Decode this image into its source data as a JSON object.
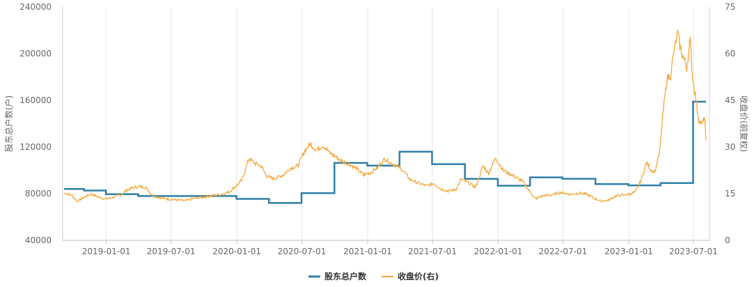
{
  "chart_data": {
    "type": "line",
    "x_type": "date",
    "left_axis": {
      "label": "股东总户数(户)",
      "ylim": [
        40000,
        240000
      ],
      "ticks": [
        "40000",
        "80000",
        "120000",
        "160000",
        "200000",
        "240000"
      ]
    },
    "right_axis": {
      "label": "收盘价(前复权)",
      "ylim": [
        0,
        75
      ],
      "ticks": [
        "0",
        "15",
        "30",
        "45",
        "60",
        "75"
      ]
    },
    "x_ticks": [
      "2019-01-01",
      "2019-07-01",
      "2020-01-01",
      "2020-07-01",
      "2021-01-01",
      "2021-07-01",
      "2022-01-01",
      "2022-07-01",
      "2023-01-01",
      "2023-07-01"
    ],
    "xlim": [
      "2018-09-01",
      "2023-08-15"
    ],
    "grid": "vertical",
    "legend_position": "bottom-center",
    "series": [
      {
        "name": "股东总户数",
        "axis": "left",
        "style": "step",
        "color": "#2e7fa8",
        "points": [
          [
            "2018-09-05",
            84000
          ],
          [
            "2018-10-31",
            82700
          ],
          [
            "2018-12-31",
            79500
          ],
          [
            "2019-03-31",
            78000
          ],
          [
            "2019-06-30",
            78000
          ],
          [
            "2019-09-30",
            78000
          ],
          [
            "2019-12-31",
            75500
          ],
          [
            "2020-03-31",
            72000
          ],
          [
            "2020-06-30",
            80500
          ],
          [
            "2020-09-30",
            106300
          ],
          [
            "2020-12-31",
            104000
          ],
          [
            "2021-03-31",
            116000
          ],
          [
            "2021-06-30",
            105300
          ],
          [
            "2021-09-30",
            92700
          ],
          [
            "2021-12-31",
            86800
          ],
          [
            "2022-03-31",
            94000
          ],
          [
            "2022-06-30",
            92800
          ],
          [
            "2022-09-30",
            88200
          ],
          [
            "2022-12-31",
            87100
          ],
          [
            "2023-03-31",
            89100
          ],
          [
            "2023-06-30",
            158800
          ],
          [
            "2023-08-05",
            158800
          ]
        ]
      },
      {
        "name": "收盘价(右)",
        "axis": "right",
        "style": "line",
        "color": "#f4a83c",
        "points": [
          [
            "2018-09-05",
            15.2
          ],
          [
            "2018-09-25",
            14.6
          ],
          [
            "2018-10-12",
            12.5
          ],
          [
            "2018-10-30",
            13.8
          ],
          [
            "2018-11-20",
            14.9
          ],
          [
            "2018-12-10",
            13.9
          ],
          [
            "2018-12-31",
            13.3
          ],
          [
            "2019-01-20",
            13.8
          ],
          [
            "2019-02-10",
            14.6
          ],
          [
            "2019-02-28",
            16.2
          ],
          [
            "2019-03-20",
            17.0
          ],
          [
            "2019-04-10",
            17.3
          ],
          [
            "2019-04-25",
            16.6
          ],
          [
            "2019-05-10",
            14.5
          ],
          [
            "2019-05-30",
            13.7
          ],
          [
            "2019-06-20",
            13.3
          ],
          [
            "2019-07-15",
            13.0
          ],
          [
            "2019-08-10",
            12.7
          ],
          [
            "2019-09-01",
            13.4
          ],
          [
            "2019-09-25",
            13.8
          ],
          [
            "2019-10-20",
            14.3
          ],
          [
            "2019-11-15",
            14.7
          ],
          [
            "2019-12-10",
            15.5
          ],
          [
            "2019-12-31",
            17.6
          ],
          [
            "2020-01-15",
            19.3
          ],
          [
            "2020-02-04",
            26.3
          ],
          [
            "2020-02-20",
            24.8
          ],
          [
            "2020-03-10",
            23.8
          ],
          [
            "2020-03-25",
            20.5
          ],
          [
            "2020-04-15",
            19.8
          ],
          [
            "2020-05-10",
            21.0
          ],
          [
            "2020-05-30",
            23.2
          ],
          [
            "2020-06-20",
            24.0
          ],
          [
            "2020-07-10",
            29.0
          ],
          [
            "2020-07-25",
            31.0
          ],
          [
            "2020-08-10",
            29.0
          ],
          [
            "2020-08-30",
            30.5
          ],
          [
            "2020-09-15",
            28.3
          ],
          [
            "2020-10-01",
            27.0
          ],
          [
            "2020-10-20",
            25.5
          ],
          [
            "2020-11-10",
            24.5
          ],
          [
            "2020-12-01",
            23.0
          ],
          [
            "2020-12-20",
            21.0
          ],
          [
            "2021-01-10",
            21.8
          ],
          [
            "2021-01-30",
            23.5
          ],
          [
            "2021-02-18",
            26.3
          ],
          [
            "2021-03-05",
            25.0
          ],
          [
            "2021-03-25",
            23.8
          ],
          [
            "2021-04-10",
            22.5
          ],
          [
            "2021-04-30",
            19.5
          ],
          [
            "2021-05-20",
            18.5
          ],
          [
            "2021-06-15",
            17.5
          ],
          [
            "2021-07-05",
            18.3
          ],
          [
            "2021-07-25",
            16.5
          ],
          [
            "2021-08-15",
            15.8
          ],
          [
            "2021-09-05",
            16.4
          ],
          [
            "2021-09-20",
            19.6
          ],
          [
            "2021-10-10",
            18.5
          ],
          [
            "2021-10-30",
            17.0
          ],
          [
            "2021-11-20",
            24.0
          ],
          [
            "2021-12-05",
            21.5
          ],
          [
            "2021-12-25",
            26.5
          ],
          [
            "2022-01-15",
            22.5
          ],
          [
            "2022-02-05",
            21.2
          ],
          [
            "2022-02-20",
            20.2
          ],
          [
            "2022-03-10",
            19.0
          ],
          [
            "2022-03-25",
            16.5
          ],
          [
            "2022-04-15",
            13.3
          ],
          [
            "2022-05-05",
            14.3
          ],
          [
            "2022-06-01",
            14.6
          ],
          [
            "2022-06-25",
            15.4
          ],
          [
            "2022-07-20",
            14.8
          ],
          [
            "2022-08-15",
            15.2
          ],
          [
            "2022-09-05",
            14.8
          ],
          [
            "2022-09-25",
            13.6
          ],
          [
            "2022-10-15",
            12.6
          ],
          [
            "2022-11-05",
            12.9
          ],
          [
            "2022-11-25",
            14.2
          ],
          [
            "2022-12-15",
            14.5
          ],
          [
            "2023-01-05",
            14.9
          ],
          [
            "2023-01-20",
            15.6
          ],
          [
            "2023-02-05",
            19.5
          ],
          [
            "2023-02-20",
            25.0
          ],
          [
            "2023-03-05",
            22.5
          ],
          [
            "2023-03-15",
            22.0
          ],
          [
            "2023-03-28",
            28.0
          ],
          [
            "2023-04-08",
            42.0
          ],
          [
            "2023-04-18",
            52.0
          ],
          [
            "2023-04-28",
            53.0
          ],
          [
            "2023-05-08",
            61.0
          ],
          [
            "2023-05-18",
            66.5
          ],
          [
            "2023-05-25",
            62.0
          ],
          [
            "2023-06-05",
            58.0
          ],
          [
            "2023-06-12",
            55.5
          ],
          [
            "2023-06-22",
            64.0
          ],
          [
            "2023-06-29",
            52.0
          ],
          [
            "2023-07-06",
            47.0
          ],
          [
            "2023-07-15",
            39.0
          ],
          [
            "2023-07-25",
            37.0
          ],
          [
            "2023-08-01",
            39.5
          ],
          [
            "2023-08-05",
            32.2
          ]
        ]
      }
    ]
  }
}
